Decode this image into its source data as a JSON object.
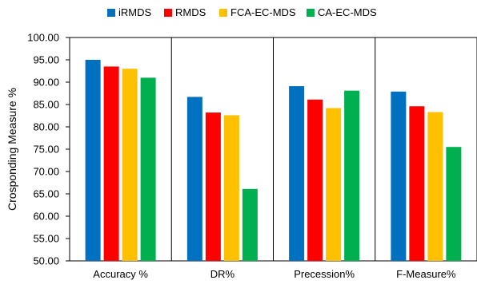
{
  "chart_data": {
    "type": "bar",
    "title": "",
    "xlabel": "",
    "ylabel": "Crosponding Measure %",
    "ylim": [
      50,
      100
    ],
    "ytick_step": 5,
    "ytick_labels": [
      "50.00",
      "55.00",
      "60.00",
      "65.00",
      "70.00",
      "75.00",
      "80.00",
      "85.00",
      "90.00",
      "95.00",
      "100.00"
    ],
    "grid": false,
    "legend_position": "top",
    "categories": [
      "Accuracy %",
      "DR%",
      "Precession%",
      "F-Measure%"
    ],
    "series": [
      {
        "name": "iRMDS",
        "color": "#0070C0",
        "values": [
          95.0,
          86.7,
          89.1,
          87.9
        ]
      },
      {
        "name": "RMDS",
        "color": "#FF0000",
        "values": [
          93.5,
          83.2,
          86.1,
          84.6
        ]
      },
      {
        "name": "FCA-EC-MDS",
        "color": "#FFC000",
        "values": [
          93.0,
          82.6,
          84.2,
          83.3
        ]
      },
      {
        "name": "CA-EC-MDS",
        "color": "#00B050",
        "values": [
          91.0,
          66.1,
          88.1,
          75.5
        ]
      }
    ]
  }
}
